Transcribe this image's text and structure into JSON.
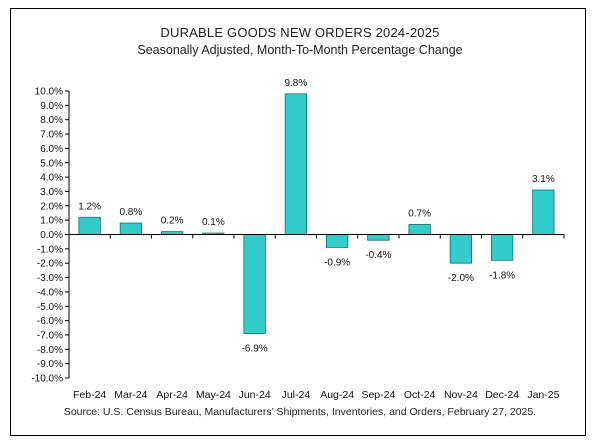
{
  "chart_data": {
    "type": "bar",
    "title": "DURABLE GOODS NEW ORDERS 2024-2025",
    "subtitle": "Seasonally Adjusted,  Month-To-Month Percentage Change",
    "source": "Source: U.S. Census Bureau, Manufacturers’ Shipments, Inventories, and Orders, February 27, 2025.",
    "categories": [
      "Feb-24",
      "Mar-24",
      "Apr-24",
      "May-24",
      "Jun-24",
      "Jul-24",
      "Aug-24",
      "Sep-24",
      "Oct-24",
      "Nov-24",
      "Dec-24",
      "Jan-25"
    ],
    "values": [
      1.2,
      0.8,
      0.2,
      0.1,
      -6.9,
      9.8,
      -0.9,
      -0.4,
      0.7,
      -2.0,
      -1.8,
      3.1
    ],
    "data_labels": [
      "1.2%",
      "0.8%",
      "0.2%",
      "0.1%",
      "-6.9%",
      "9.8%",
      "-0.9%",
      "-0.4%",
      "0.7%",
      "-2.0%",
      "-1.8%",
      "3.1%"
    ],
    "ylim": [
      -10,
      10
    ],
    "ytick_step": 1,
    "ytick_labels": [
      "10.0%",
      "9.0%",
      "8.0%",
      "7.0%",
      "6.0%",
      "5.0%",
      "4.0%",
      "3.0%",
      "2.0%",
      "1.0%",
      "0.0%",
      "-1.0%",
      "-2.0%",
      "-3.0%",
      "-4.0%",
      "-5.0%",
      "-6.0%",
      "-7.0%",
      "-8.0%",
      "-9.0%",
      "-10.0%"
    ],
    "xlabel": "",
    "ylabel": "",
    "grid": false,
    "legend": "none",
    "bar_color": "#33CCCC",
    "bar_edge_color": "#0F6E6E"
  }
}
